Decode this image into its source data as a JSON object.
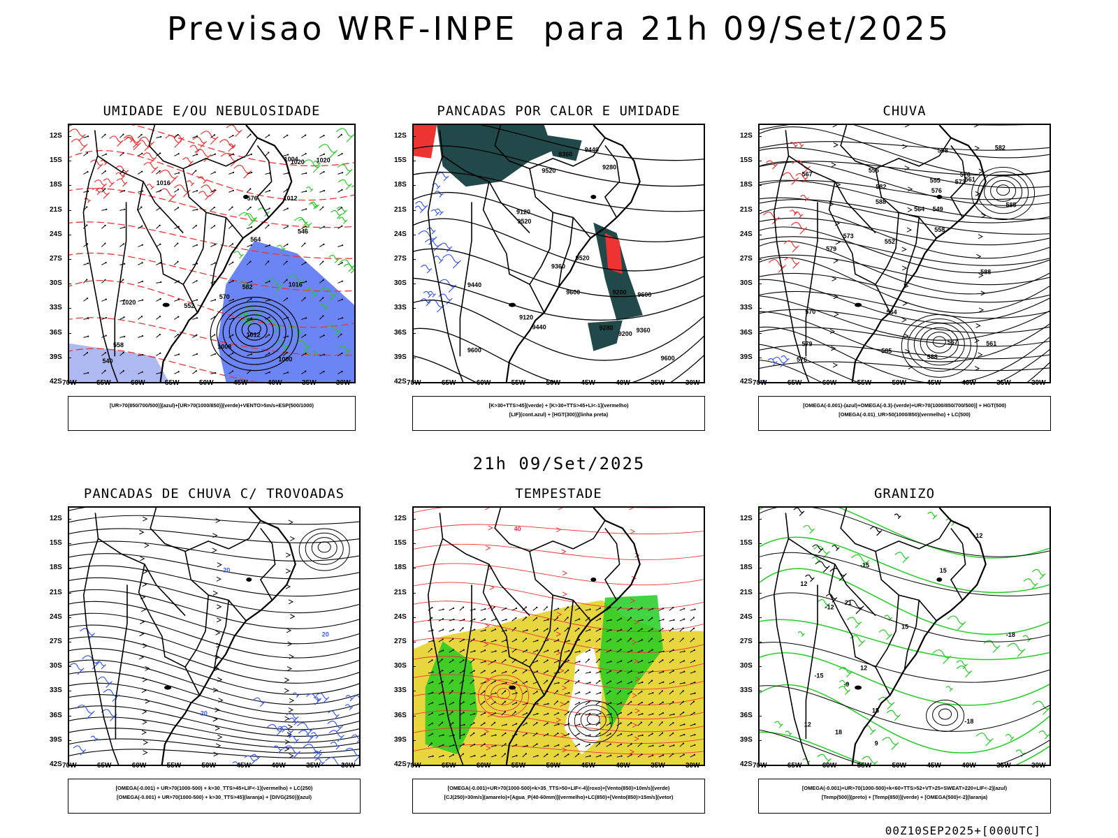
{
  "main_title": "Previsao WRF-INPE  para 21h 09/Set/2025",
  "mid_date": "21h 09/Set/2025",
  "footer_time": "00Z10SEP2025+[000UTC]",
  "axes": {
    "lat_labels": [
      "12S",
      "15S",
      "18S",
      "21S",
      "24S",
      "27S",
      "30S",
      "33S",
      "36S",
      "39S",
      "42S"
    ],
    "lon_labels": [
      "70W",
      "65W",
      "60W",
      "55W",
      "50W",
      "45W",
      "40W",
      "35W",
      "30W"
    ]
  },
  "panels": [
    {
      "id": "umidade",
      "title": "UMIDADE E/OU NEBULOSIDADE",
      "legend": [
        "[UR>70(850/700/500)](azul)+[UR>70(1000/850)](verde)+VENTO>5m/s+ESP(500/1000)"
      ],
      "contour_labels": [
        "1020",
        "1016",
        "1020",
        "1016",
        "1012",
        "1008",
        "1004",
        "1000",
        "1012",
        "1020",
        "570",
        "576",
        "558",
        "552",
        "546",
        "540",
        "564",
        "582"
      ]
    },
    {
      "id": "pancadas-calor",
      "title": "PANCADAS POR CALOR E UMIDADE",
      "legend": [
        "[K>30+TTS>45](verde) + [K>30+TTS>45+LI<-1](vermelho)",
        "[LIF](cont.azul) + [HGT(300)](linha preta)"
      ],
      "contour_labels": [
        "9600",
        "9600",
        "9520",
        "9600",
        "9520",
        "9440",
        "9360",
        "9280",
        "9200",
        "9120",
        "9600",
        "9520",
        "9440",
        "9360",
        "9280",
        "9120",
        "9200",
        "9440",
        "9360"
      ]
    },
    {
      "id": "chuva",
      "title": "CHUVA",
      "legend": [
        "[OMEGA(-0.001)-(azul)+OMEGA(-0.3)-(verde)+UR>70(1000/850/700/500)] + HGT(500)",
        "[OMEGA(-0.01)_UR>50(1000/850)(vermelho) + LC(500)"
      ],
      "contour_labels": [
        "588",
        "588",
        "585",
        "582",
        "579",
        "576",
        "573",
        "570",
        "567",
        "564",
        "561",
        "558",
        "555",
        "552",
        "549",
        "588",
        "585",
        "582",
        "579",
        "576",
        "573",
        "570",
        "567",
        "564",
        "561",
        "558",
        "555"
      ]
    },
    {
      "id": "pancadas-trovoadas",
      "title": "PANCADAS DE CHUVA C/ TROVOADAS",
      "legend": [
        "[OMEGA(-0.001) + UR>70(1000-500) + k>30_TTS>45+LIF<-1](vermelho) + LC(250)",
        "[OMEGA(-0.001) + UR>70(1000-500) + k>30_TTS>45](laranja) + [DIVG(250)](azul)"
      ],
      "contour_labels": [
        "20",
        "20",
        "20"
      ]
    },
    {
      "id": "tempestade",
      "title": "TEMPESTADE",
      "legend": [
        "[OMEGA(-0.001)+UR>70(1000-500)+k>35_TTS>50+LIF<-4](roxo)+[Vento(850)>10m/s](verde)",
        "[CJ(250)>30m/s](amarelo)+[Agua_P(40-60mm)](vermelho)+LC(850)+[Vento(850)>15m/s](vetor)"
      ],
      "contour_labels": [
        "40"
      ]
    },
    {
      "id": "granizo",
      "title": "GRANIZO",
      "legend": [
        "[OMEGA(-0.001)+UR>70(1000-500)+k<60+TTS>52+VT>25+SWEAT>220+LIF<-2](azul)",
        "[Temp(500)](preto) + [Temp(850)](verde) + [OMEGA(500)<-2](laranja)"
      ],
      "contour_labels": [
        "-12",
        "-9",
        "-15",
        "-18",
        "-12",
        "-15",
        "-18",
        "12",
        "15",
        "15",
        "12",
        "9",
        "21",
        "18",
        "15",
        "12"
      ]
    }
  ],
  "colors": {
    "blue": "#3a5cf0",
    "light_blue": "#9aa6ee",
    "green": "#22cc22",
    "red": "#ee3333",
    "dark_teal": "#21494a",
    "yellow": "#e6d22a",
    "black": "#000000"
  }
}
